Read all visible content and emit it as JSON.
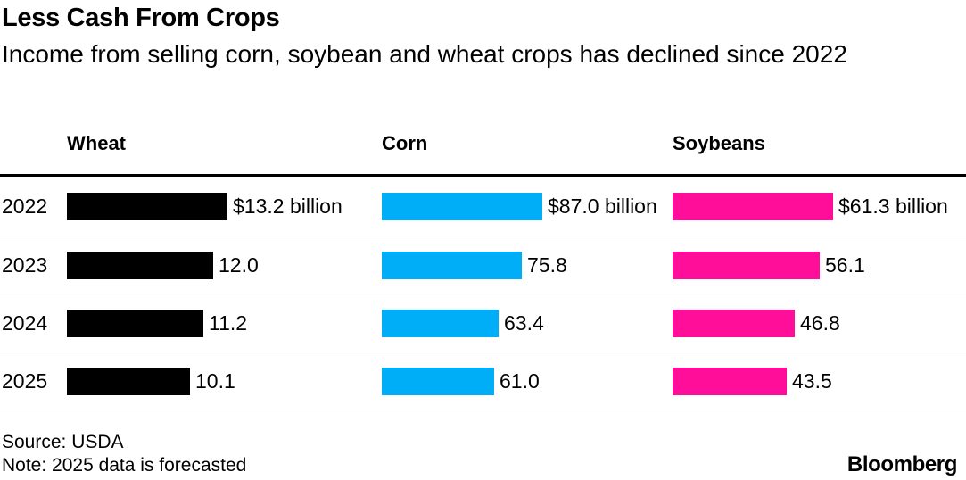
{
  "chart_data": {
    "type": "bar",
    "title": "Less Cash From Crops",
    "subtitle": "Income from selling corn, soybean and wheat crops has declined since 2022",
    "categories": [
      "2022",
      "2023",
      "2024",
      "2025"
    ],
    "series": [
      {
        "name": "Wheat",
        "color": "#000000",
        "values": [
          13.2,
          12.0,
          11.2,
          10.1
        ],
        "labels": [
          "$13.2 billion",
          "12.0",
          "11.2",
          "10.1"
        ]
      },
      {
        "name": "Corn",
        "color": "#00adf7",
        "values": [
          87.0,
          75.8,
          63.4,
          61.0
        ],
        "labels": [
          "$87.0 billion",
          "75.8",
          "63.4",
          "61.0"
        ]
      },
      {
        "name": "Soybeans",
        "color": "#ff0f99",
        "values": [
          61.3,
          56.1,
          46.8,
          43.5
        ],
        "labels": [
          "$61.3 billion",
          "56.1",
          "46.8",
          "43.5"
        ]
      }
    ],
    "unit": "billion USD"
  },
  "footer": {
    "source": "Source: USDA",
    "note": "Note: 2025 data is forecasted",
    "brand": "Bloomberg"
  }
}
